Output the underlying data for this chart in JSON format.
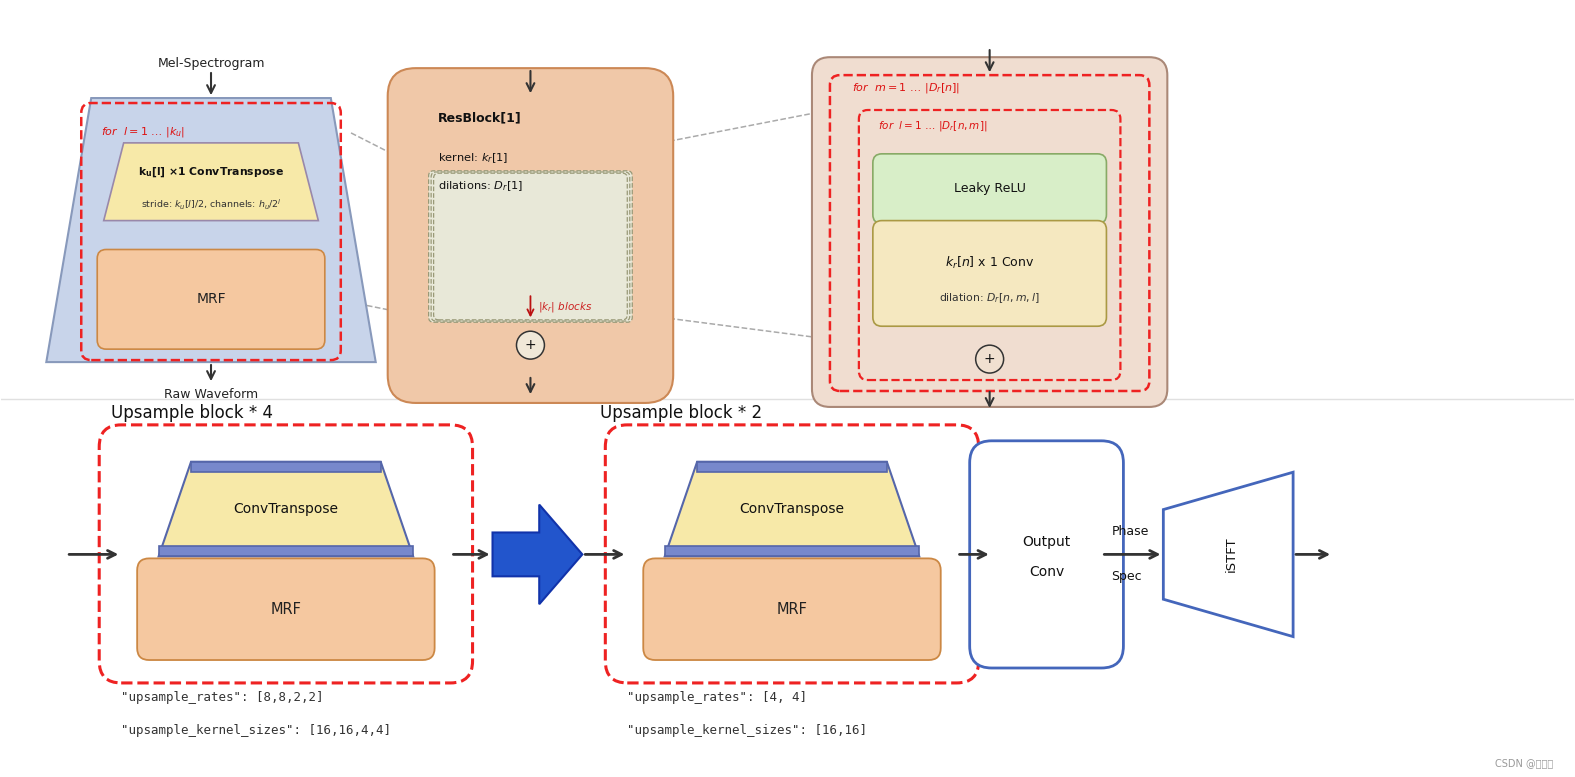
{
  "bg_color": "#ffffff",
  "top": {
    "mel_label": "Mel-Spectrogram",
    "raw_label": "Raw Waveform",
    "for_l_label": "for  l = 1 ... |k_u|",
    "conv_label1": "k_u[l] x 1 ConvTranspose",
    "conv_label2": "stride: k_u[l]/2, channels: h_u/2^l",
    "mrf_label": "MRF",
    "resblock_label": "ResBlock[1]",
    "kernel_label": "kernel: k_r[1]",
    "dil_label": "dilations: D_r[1]",
    "kr_blocks_label": "|k_r| blocks",
    "for_m_label": "for  m = 1 ... |D_r[n]|",
    "for_l2_label": "for  l = 1 ... |D_r[n,m]|",
    "leaky_label": "Leaky ReLU",
    "conv2_label1": "k_r[n] x 1 Conv",
    "conv2_label2": "dilation: D_r[n,m,l]"
  },
  "bot": {
    "block4_title": "Upsample block * 4",
    "block2_title": "Upsample block * 2",
    "conv_label": "ConvTranspose",
    "mrf_label": "MRF",
    "out_label1": "Output",
    "out_label2": "Conv",
    "phase_label1": "Phase",
    "phase_label2": "Spec",
    "istft_label": "iSTFT",
    "text1_left": "\"upsample_rates\": [8,8,2,2]",
    "text2_left": "\"upsample_kernel_sizes\": [16,16,4,4]",
    "text1_right": "\"upsample_rates\": [4, 4]",
    "text2_right": "\"upsample_kernel_sizes\": [16,16]"
  },
  "watermark": "CSDN @韵尘铃"
}
